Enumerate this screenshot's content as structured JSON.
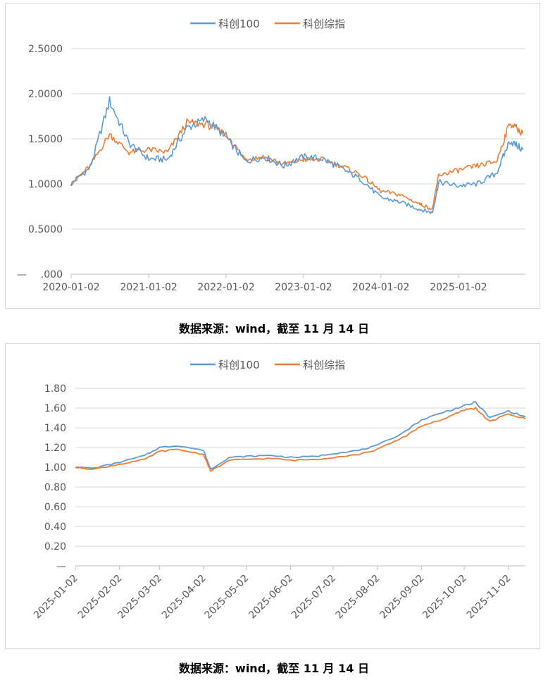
{
  "colors": {
    "series1": "#5b9bd5",
    "series2": "#ed7d31",
    "grid": "#d9d9d9",
    "text": "#595959",
    "axis": "#bfbfbf"
  },
  "chart_data": [
    {
      "type": "line",
      "title": "",
      "legend_position": "top",
      "grid": true,
      "ylim": [
        0,
        2.5
      ],
      "y_ticks": [
        ".000",
        "0.5000",
        "1.0000",
        "1.5000",
        "2.0000",
        "2.5000"
      ],
      "zero_label": "—",
      "x_ticks": [
        "2020-01-02",
        "2021-01-02",
        "2022-01-02",
        "2023-01-02",
        "2024-01-02",
        "2025-01-02"
      ],
      "x": [
        "2020-01",
        "2020-04",
        "2020-07",
        "2020-10",
        "2021-01",
        "2021-04",
        "2021-07",
        "2021-10",
        "2022-01",
        "2022-04",
        "2022-07",
        "2022-10",
        "2023-01",
        "2023-04",
        "2023-07",
        "2023-10",
        "2024-01",
        "2024-04",
        "2024-07",
        "2024-09",
        "2024-10",
        "2025-01",
        "2025-04",
        "2025-07",
        "2025-09",
        "2025-11"
      ],
      "series": [
        {
          "name": "科创100",
          "values": [
            1.0,
            1.18,
            1.92,
            1.45,
            1.28,
            1.27,
            1.62,
            1.72,
            1.52,
            1.25,
            1.3,
            1.2,
            1.3,
            1.28,
            1.17,
            1.05,
            0.85,
            0.8,
            0.72,
            0.68,
            1.02,
            0.98,
            1.0,
            1.12,
            1.48,
            1.38
          ]
        },
        {
          "name": "科创综指",
          "values": [
            1.0,
            1.2,
            1.55,
            1.35,
            1.38,
            1.35,
            1.68,
            1.66,
            1.55,
            1.28,
            1.3,
            1.22,
            1.27,
            1.27,
            1.2,
            1.1,
            0.92,
            0.88,
            0.78,
            0.72,
            1.1,
            1.15,
            1.2,
            1.25,
            1.68,
            1.56
          ]
        }
      ]
    },
    {
      "type": "line",
      "title": "",
      "legend_position": "top",
      "grid": true,
      "ylim": [
        0,
        1.8
      ],
      "y_ticks": [
        "—",
        "0.20",
        "0.40",
        "0.60",
        "0.80",
        "1.00",
        "1.20",
        "1.40",
        "1.60",
        "1.80"
      ],
      "x_ticks": [
        "2025-01-02",
        "2025-02-02",
        "2025-03-02",
        "2025-04-02",
        "2025-05-02",
        "2025-06-02",
        "2025-07-02",
        "2025-08-02",
        "2025-09-02",
        "2025-10-02",
        "2025-11-02"
      ],
      "x": [
        "2025-01-02",
        "2025-01-15",
        "2025-02-02",
        "2025-02-20",
        "2025-03-02",
        "2025-03-15",
        "2025-04-02",
        "2025-04-07",
        "2025-04-20",
        "2025-05-02",
        "2025-05-20",
        "2025-06-02",
        "2025-06-20",
        "2025-07-02",
        "2025-07-20",
        "2025-08-02",
        "2025-08-20",
        "2025-09-02",
        "2025-09-20",
        "2025-10-02",
        "2025-10-10",
        "2025-10-20",
        "2025-11-02",
        "2025-11-14"
      ],
      "series": [
        {
          "name": "科创100",
          "values": [
            1.0,
            0.99,
            1.05,
            1.12,
            1.2,
            1.22,
            1.17,
            0.98,
            1.1,
            1.11,
            1.12,
            1.1,
            1.11,
            1.14,
            1.17,
            1.22,
            1.35,
            1.48,
            1.57,
            1.62,
            1.66,
            1.5,
            1.57,
            1.51
          ]
        },
        {
          "name": "科创综指",
          "values": [
            1.0,
            0.98,
            1.03,
            1.08,
            1.16,
            1.18,
            1.13,
            0.96,
            1.07,
            1.08,
            1.09,
            1.07,
            1.08,
            1.1,
            1.13,
            1.18,
            1.3,
            1.42,
            1.5,
            1.58,
            1.6,
            1.46,
            1.54,
            1.49
          ]
        }
      ]
    }
  ],
  "sources": {
    "top": "数据来源：wind，截至 11 月 14 日",
    "bottom": "数据来源：wind，截至 11 月 14 日"
  }
}
